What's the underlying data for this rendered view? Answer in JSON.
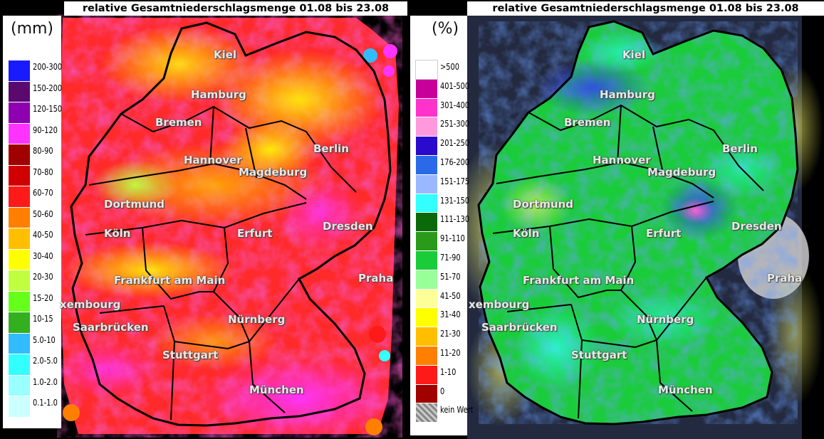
{
  "left_panel": {
    "title": "relative Gesamtniederschlagsmenge 01.08 bis 23.08",
    "unit": "(mm)",
    "legend": [
      {
        "label": "200-300",
        "color": "#1a1aff"
      },
      {
        "label": "150-200",
        "color": "#5a0a6e"
      },
      {
        "label": "120-150",
        "color": "#8f00b0"
      },
      {
        "label": "90-120",
        "color": "#ff33ff"
      },
      {
        "label": "80-90",
        "color": "#a00000"
      },
      {
        "label": "70-80",
        "color": "#d00000"
      },
      {
        "label": "60-70",
        "color": "#ff1a1a"
      },
      {
        "label": "50-60",
        "color": "#ff8000"
      },
      {
        "label": "40-50",
        "color": "#ffbf00"
      },
      {
        "label": "30-40",
        "color": "#ffff00"
      },
      {
        "label": "20-30",
        "color": "#bfff40"
      },
      {
        "label": "15-20",
        "color": "#66ff1a"
      },
      {
        "label": "10-15",
        "color": "#33b020"
      },
      {
        "label": "5.0-10",
        "color": "#33bbff"
      },
      {
        "label": "2.0-5.0",
        "color": "#33ffff"
      },
      {
        "label": "1.0-2.0",
        "color": "#99ffff"
      },
      {
        "label": "0.1-1.0",
        "color": "#ccffff"
      }
    ],
    "cities": [
      "Kiel",
      "Hamburg",
      "Bremen",
      "Hannover",
      "Berlin",
      "Magdeburg",
      "Dortmund",
      "Köln",
      "Erfurt",
      "Dresden",
      "Frankfurt am Main",
      "Praha",
      "xembourg",
      "Saarbrücken",
      "Nürnberg",
      "Stuttgart",
      "München"
    ]
  },
  "right_panel": {
    "title": "relative Gesamtniederschlagsmenge 01.08 bis 23.08",
    "unit": "(%)",
    "legend": [
      {
        "label": ">500",
        "color": "#ffffff"
      },
      {
        "label": "401-500",
        "color": "#c8009a"
      },
      {
        "label": "301-400",
        "color": "#ff33cc"
      },
      {
        "label": "251-300",
        "color": "#ff99dd"
      },
      {
        "label": "201-250",
        "color": "#2a0acc"
      },
      {
        "label": "176-200",
        "color": "#2a6ae8"
      },
      {
        "label": "151-175",
        "color": "#99b8ff"
      },
      {
        "label": "131-150",
        "color": "#33ffff"
      },
      {
        "label": "111-130",
        "color": "#0a6a0a"
      },
      {
        "label": "91-110",
        "color": "#2a9a1a"
      },
      {
        "label": "71-90",
        "color": "#1acc3a"
      },
      {
        "label": "51-70",
        "color": "#99ff99"
      },
      {
        "label": "41-50",
        "color": "#ffff99"
      },
      {
        "label": "31-40",
        "color": "#ffff00"
      },
      {
        "label": "21-30",
        "color": "#ffbf00"
      },
      {
        "label": "11-20",
        "color": "#ff8000"
      },
      {
        "label": "1-10",
        "color": "#ff1a1a"
      },
      {
        "label": "0",
        "color": "#a00000"
      },
      {
        "label": "kein Wert",
        "color": "#aaaaaa"
      }
    ],
    "cities": [
      "Kiel",
      "Hamburg",
      "Bremen",
      "Hannover",
      "Berlin",
      "Magdeburg",
      "Dortmund",
      "Köln",
      "Erfurt",
      "Dresden",
      "Frankfurt am Main",
      "Praha",
      "xembourg",
      "Saarbrücken",
      "Nürnberg",
      "Stuttgart",
      "München"
    ]
  }
}
